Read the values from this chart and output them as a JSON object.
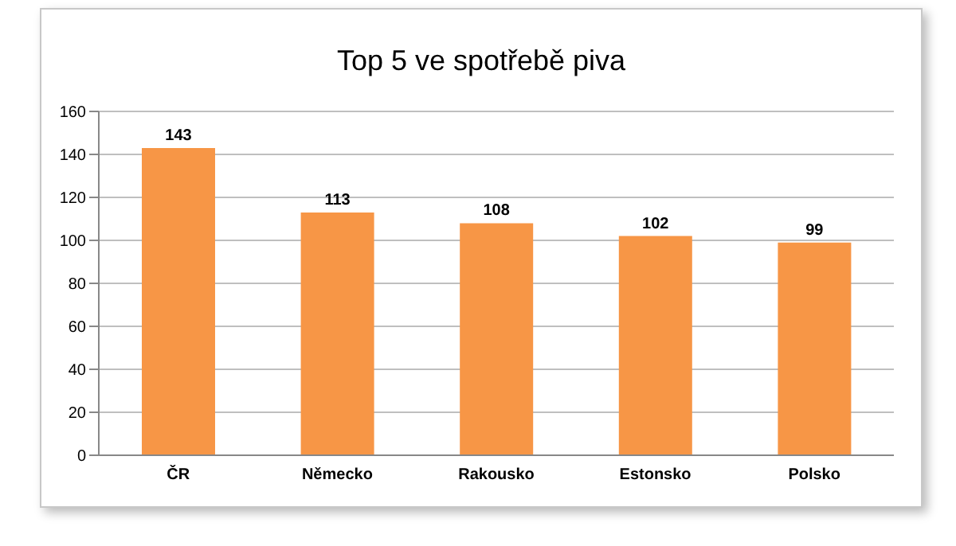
{
  "chart_data": {
    "type": "bar",
    "title": "Top 5 ve spotřebě piva",
    "categories": [
      "ČR",
      "Německo",
      "Rakousko",
      "Estonsko",
      "Polsko"
    ],
    "values": [
      143,
      113,
      108,
      102,
      99
    ],
    "color": "#f79646",
    "ylim": [
      0,
      160
    ],
    "yticks": [
      0,
      20,
      40,
      60,
      80,
      100,
      120,
      140,
      160
    ],
    "grid": "y",
    "data_labels": true
  }
}
